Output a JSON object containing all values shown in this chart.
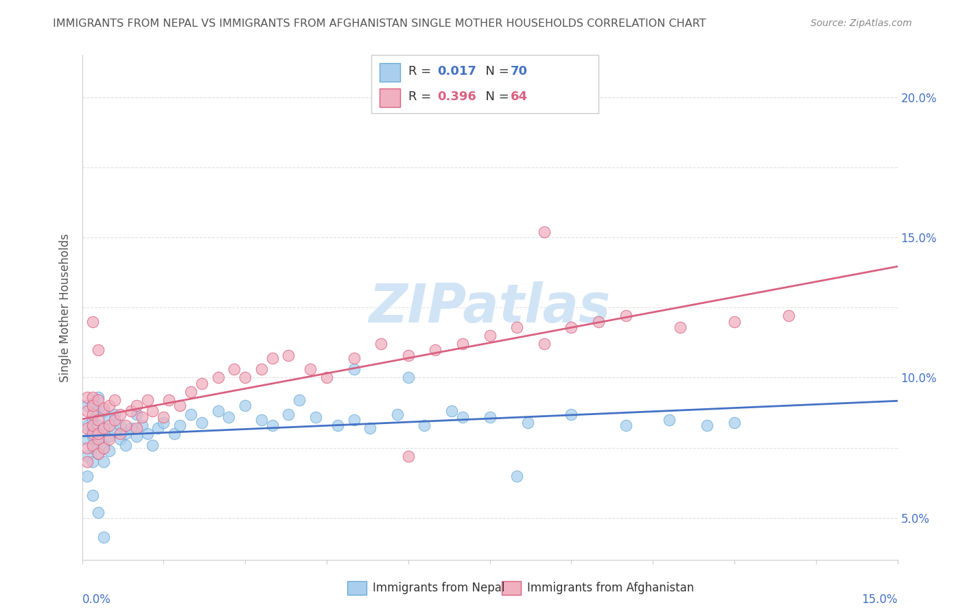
{
  "title": "IMMIGRANTS FROM NEPAL VS IMMIGRANTS FROM AFGHANISTAN SINGLE MOTHER HOUSEHOLDS CORRELATION CHART",
  "source": "Source: ZipAtlas.com",
  "ylabel": "Single Mother Households",
  "watermark": "ZIPatlas",
  "legend1_R": "0.017",
  "legend1_N": "70",
  "legend2_R": "0.396",
  "legend2_N": "64",
  "legend1_label": "Immigrants from Nepal",
  "legend2_label": "Immigrants from Afghanistan",
  "nepal_color": "#aacfee",
  "nepal_color_dark": "#6aaad4",
  "afghanistan_color": "#f0b0c0",
  "afghanistan_color_dark": "#d96080",
  "nepal_line_color": "#4472c4",
  "afghanistan_line_color": "#d96080",
  "label_color": "#4472c4",
  "title_color": "#555555",
  "source_color": "#888888",
  "watermark_color": "#d0e4f5",
  "grid_color": "#dddddd",
  "background_color": "#ffffff",
  "xlim": [
    0.0,
    0.15
  ],
  "ylim": [
    0.035,
    0.215
  ],
  "ytick_vals": [
    0.05,
    0.075,
    0.1,
    0.125,
    0.15,
    0.175,
    0.2
  ],
  "ytick_labels": [
    "5.0%",
    "",
    "10.0%",
    "",
    "15.0%",
    "",
    "20.0%"
  ],
  "nepal_x": [
    0.001,
    0.001,
    0.001,
    0.001,
    0.001,
    0.002,
    0.002,
    0.002,
    0.002,
    0.002,
    0.002,
    0.003,
    0.003,
    0.003,
    0.003,
    0.003,
    0.003,
    0.004,
    0.004,
    0.004,
    0.004,
    0.005,
    0.005,
    0.005,
    0.006,
    0.006,
    0.007,
    0.007,
    0.008,
    0.008,
    0.009,
    0.01,
    0.01,
    0.011,
    0.012,
    0.013,
    0.014,
    0.015,
    0.017,
    0.018,
    0.02,
    0.022,
    0.025,
    0.027,
    0.03,
    0.033,
    0.035,
    0.038,
    0.04,
    0.043,
    0.047,
    0.05,
    0.053,
    0.058,
    0.063,
    0.068,
    0.075,
    0.082,
    0.09,
    0.1,
    0.108,
    0.115,
    0.12,
    0.002,
    0.003,
    0.004,
    0.05,
    0.06,
    0.07,
    0.08
  ],
  "nepal_y": [
    0.078,
    0.083,
    0.072,
    0.09,
    0.065,
    0.079,
    0.085,
    0.091,
    0.075,
    0.082,
    0.07,
    0.077,
    0.083,
    0.088,
    0.08,
    0.073,
    0.093,
    0.076,
    0.082,
    0.088,
    0.07,
    0.079,
    0.085,
    0.074,
    0.081,
    0.087,
    0.078,
    0.083,
    0.08,
    0.076,
    0.082,
    0.079,
    0.087,
    0.083,
    0.08,
    0.076,
    0.082,
    0.084,
    0.08,
    0.083,
    0.087,
    0.084,
    0.088,
    0.086,
    0.09,
    0.085,
    0.083,
    0.087,
    0.092,
    0.086,
    0.083,
    0.085,
    0.082,
    0.087,
    0.083,
    0.088,
    0.086,
    0.084,
    0.087,
    0.083,
    0.085,
    0.083,
    0.084,
    0.058,
    0.052,
    0.043,
    0.103,
    0.1,
    0.086,
    0.065
  ],
  "afghanistan_x": [
    0.001,
    0.001,
    0.001,
    0.001,
    0.001,
    0.002,
    0.002,
    0.002,
    0.002,
    0.002,
    0.002,
    0.003,
    0.003,
    0.003,
    0.003,
    0.003,
    0.004,
    0.004,
    0.004,
    0.005,
    0.005,
    0.005,
    0.006,
    0.006,
    0.007,
    0.007,
    0.008,
    0.009,
    0.01,
    0.01,
    0.011,
    0.012,
    0.013,
    0.015,
    0.016,
    0.018,
    0.02,
    0.022,
    0.025,
    0.028,
    0.03,
    0.033,
    0.035,
    0.038,
    0.042,
    0.045,
    0.05,
    0.055,
    0.06,
    0.065,
    0.07,
    0.075,
    0.08,
    0.085,
    0.09,
    0.095,
    0.1,
    0.11,
    0.12,
    0.13,
    0.002,
    0.003,
    0.06,
    0.085
  ],
  "afghanistan_y": [
    0.082,
    0.088,
    0.075,
    0.093,
    0.07,
    0.08,
    0.087,
    0.093,
    0.076,
    0.083,
    0.09,
    0.078,
    0.085,
    0.092,
    0.08,
    0.073,
    0.082,
    0.089,
    0.075,
    0.083,
    0.09,
    0.078,
    0.085,
    0.092,
    0.08,
    0.087,
    0.083,
    0.088,
    0.082,
    0.09,
    0.086,
    0.092,
    0.088,
    0.086,
    0.092,
    0.09,
    0.095,
    0.098,
    0.1,
    0.103,
    0.1,
    0.103,
    0.107,
    0.108,
    0.103,
    0.1,
    0.107,
    0.112,
    0.108,
    0.11,
    0.112,
    0.115,
    0.118,
    0.112,
    0.118,
    0.12,
    0.122,
    0.118,
    0.12,
    0.122,
    0.12,
    0.11,
    0.072,
    0.152
  ]
}
